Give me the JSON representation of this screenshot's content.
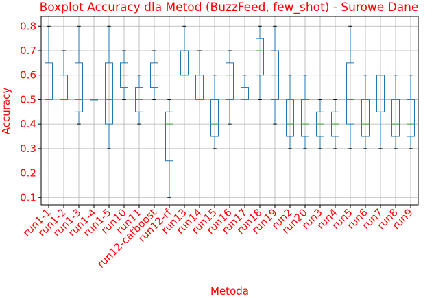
{
  "chart_data": {
    "type": "boxplot",
    "title": "Boxplot Accuracy dla Metod (BuzzFeed, few_shot) - Surowe Dane",
    "xlabel": "Metoda",
    "ylabel": "Accuracy",
    "ylim": [
      0.07,
      0.84
    ],
    "yticks": [
      0.1,
      0.2,
      0.3,
      0.4,
      0.5,
      0.6,
      0.7,
      0.8
    ],
    "ytick_labels": [
      "0.1",
      "0.2",
      "0.3",
      "0.4",
      "0.5",
      "0.6",
      "0.7",
      "0.8"
    ],
    "grid": true,
    "colors": {
      "text": "#ff0000",
      "box": "#1f77b4",
      "median": "#2ca02c",
      "grid": "#b0b0b0",
      "whisker_cap": "#000000"
    },
    "categories": [
      "run1-1",
      "run1-2",
      "run1-3",
      "run1-4",
      "run1-5",
      "run10",
      "run11",
      "run12-catboost",
      "run12-rf",
      "run13",
      "run14",
      "run15",
      "run16",
      "run17",
      "run18",
      "run19",
      "run2",
      "run20",
      "run3",
      "run4",
      "run5",
      "run6",
      "run7",
      "run8",
      "run9"
    ],
    "boxes": [
      {
        "whislo": 0.5,
        "q1": 0.5,
        "med": 0.5,
        "q3": 0.65,
        "whishi": 0.8
      },
      {
        "whislo": 0.5,
        "q1": 0.5,
        "med": 0.5,
        "q3": 0.6,
        "whishi": 0.7
      },
      {
        "whislo": 0.4,
        "q1": 0.45,
        "med": 0.5,
        "q3": 0.65,
        "whishi": 0.8
      },
      {
        "whislo": 0.5,
        "q1": 0.5,
        "med": 0.5,
        "q3": 0.5,
        "whishi": 0.5
      },
      {
        "whislo": 0.3,
        "q1": 0.4,
        "med": 0.5,
        "q3": 0.65,
        "whishi": 0.8
      },
      {
        "whislo": 0.5,
        "q1": 0.55,
        "med": 0.6,
        "q3": 0.65,
        "whishi": 0.7
      },
      {
        "whislo": 0.4,
        "q1": 0.45,
        "med": 0.5,
        "q3": 0.55,
        "whishi": 0.6
      },
      {
        "whislo": 0.5,
        "q1": 0.55,
        "med": 0.6,
        "q3": 0.65,
        "whishi": 0.7
      },
      {
        "whislo": 0.1,
        "q1": 0.25,
        "med": 0.4,
        "q3": 0.45,
        "whishi": 0.5
      },
      {
        "whislo": 0.6,
        "q1": 0.6,
        "med": 0.6,
        "q3": 0.7,
        "whishi": 0.8
      },
      {
        "whislo": 0.5,
        "q1": 0.5,
        "med": 0.5,
        "q3": 0.6,
        "whishi": 0.7
      },
      {
        "whislo": 0.3,
        "q1": 0.35,
        "med": 0.4,
        "q3": 0.5,
        "whishi": 0.6
      },
      {
        "whislo": 0.4,
        "q1": 0.5,
        "med": 0.6,
        "q3": 0.65,
        "whishi": 0.7
      },
      {
        "whislo": 0.5,
        "q1": 0.5,
        "med": 0.5,
        "q3": 0.55,
        "whishi": 0.6
      },
      {
        "whislo": 0.5,
        "q1": 0.6,
        "med": 0.7,
        "q3": 0.75,
        "whishi": 0.8
      },
      {
        "whislo": 0.4,
        "q1": 0.5,
        "med": 0.6,
        "q3": 0.7,
        "whishi": 0.8
      },
      {
        "whislo": 0.3,
        "q1": 0.35,
        "med": 0.4,
        "q3": 0.5,
        "whishi": 0.6
      },
      {
        "whislo": 0.3,
        "q1": 0.35,
        "med": 0.4,
        "q3": 0.5,
        "whishi": 0.6
      },
      {
        "whislo": 0.3,
        "q1": 0.35,
        "med": 0.4,
        "q3": 0.45,
        "whishi": 0.5
      },
      {
        "whislo": 0.3,
        "q1": 0.35,
        "med": 0.4,
        "q3": 0.45,
        "whishi": 0.5
      },
      {
        "whislo": 0.3,
        "q1": 0.4,
        "med": 0.5,
        "q3": 0.65,
        "whishi": 0.8
      },
      {
        "whislo": 0.3,
        "q1": 0.35,
        "med": 0.4,
        "q3": 0.5,
        "whishi": 0.6
      },
      {
        "whislo": 0.3,
        "q1": 0.45,
        "med": 0.6,
        "q3": 0.6,
        "whishi": 0.6
      },
      {
        "whislo": 0.3,
        "q1": 0.35,
        "med": 0.4,
        "q3": 0.5,
        "whishi": 0.6
      },
      {
        "whislo": 0.3,
        "q1": 0.35,
        "med": 0.4,
        "q3": 0.5,
        "whishi": 0.6
      }
    ]
  }
}
